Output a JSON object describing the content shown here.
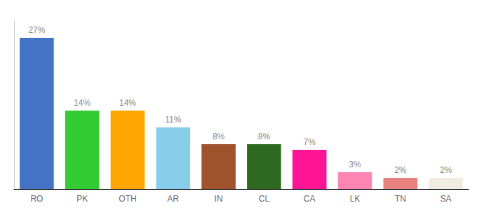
{
  "chart_data": {
    "type": "bar",
    "categories": [
      "RO",
      "PK",
      "OTH",
      "AR",
      "IN",
      "CL",
      "CA",
      "LK",
      "TN",
      "SA"
    ],
    "values": [
      27,
      14,
      14,
      11,
      8,
      8,
      7,
      3,
      2,
      2
    ],
    "value_labels": [
      "27%",
      "14%",
      "14%",
      "11%",
      "8%",
      "8%",
      "7%",
      "3%",
      "2%",
      "2%"
    ],
    "colors": [
      "#4472c4",
      "#33cc33",
      "#ffa500",
      "#87ceeb",
      "#a0522d",
      "#2d6a1f",
      "#ff1493",
      "#ff85b3",
      "#e88080",
      "#f0ede0"
    ],
    "ylim": [
      0,
      30
    ],
    "data_labels": true,
    "tick_labels": "x",
    "grid": false
  }
}
